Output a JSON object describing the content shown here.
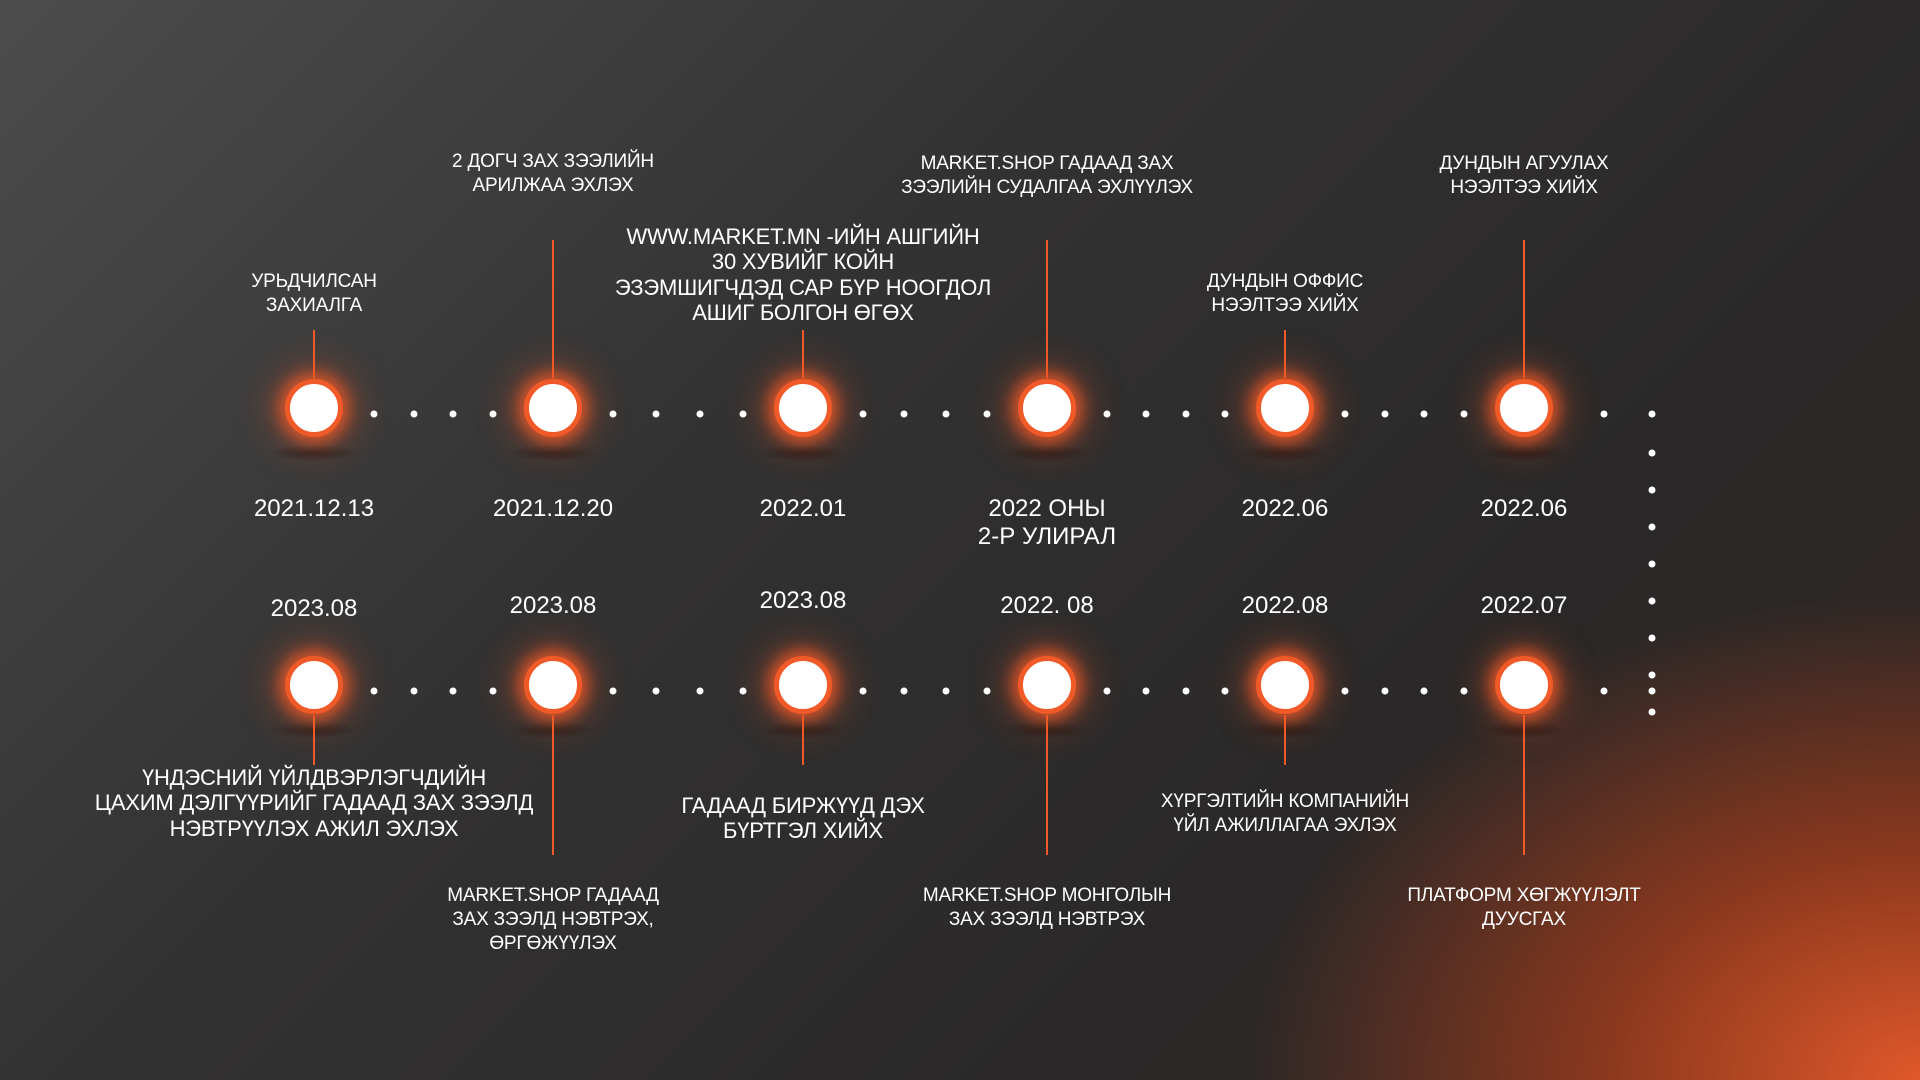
{
  "timeline": {
    "top": [
      {
        "date": "2021.12.13",
        "label": [
          "УРЬДЧИЛСАН",
          "ЗАХИАЛГА"
        ]
      },
      {
        "date": "2021.12.20",
        "label": [
          "2 ДОГЧ ЗАХ ЗЭЭЛИЙН",
          "АРИЛЖАА ЭХЛЭХ"
        ]
      },
      {
        "date": "2022.01",
        "label": [
          "WWW.MARKET.MN -ИЙН АШГИЙН",
          "30 ХУВИЙГ КОЙН",
          "ЭЗЭМШИГЧДЭД САР БҮР НООГДОЛ",
          "АШИГ БОЛГОН ӨГӨХ"
        ]
      },
      {
        "date": "2022 ОНЫ\n2-Р УЛИРАЛ",
        "label": [
          "MARKET.SHOP ГАДААД ЗАХ",
          "ЗЭЭЛИЙН СУДАЛГАА ЭХЛҮҮЛЭХ"
        ]
      },
      {
        "date": "2022.06",
        "label": [
          "ДУНДЫН ОФФИС",
          "НЭЭЛТЭЭ ХИЙХ"
        ]
      },
      {
        "date": "2022.06",
        "label": [
          "ДУНДЫН АГУУЛАХ",
          "НЭЭЛТЭЭ ХИЙХ"
        ]
      }
    ],
    "bottom": [
      {
        "date": "2023.08",
        "label": [
          "ҮНДЭСНИЙ ҮЙЛДВЭРЛЭГЧДИЙН",
          "ЦАХИМ ДЭЛГҮҮРИЙГ ГАДААД ЗАХ ЗЭЭЛД",
          "НЭВТРҮҮЛЭХ АЖИЛ ЭХЛЭХ"
        ]
      },
      {
        "date": "2023.08",
        "label": [
          "MARKET.SHOP ГАДААД",
          "ЗАХ ЗЭЭЛД НЭВТРЭХ,",
          "ӨРГӨЖҮҮЛЭХ"
        ]
      },
      {
        "date": "2023.08",
        "label": [
          "ГАДААД БИРЖҮҮД ДЭХ",
          "БҮРТГЭЛ ХИЙХ"
        ]
      },
      {
        "date": "2022. 08",
        "label": [
          "MARKET.SHOP МОНГОЛЫН",
          "ЗАХ ЗЭЭЛД НЭВТРЭХ"
        ]
      },
      {
        "date": "2022.08",
        "label": [
          "ХҮРГЭЛТИЙН КОМПАНИЙН",
          "ҮЙЛ АЖИЛЛАГАА ЭХЛЭХ"
        ]
      },
      {
        "date": "2022.07",
        "label": [
          "ПЛАТФОРМ ХӨГЖҮҮЛЭЛТ",
          "ДУУСГАХ"
        ]
      }
    ]
  },
  "colors": {
    "accent": "#f05a28",
    "node_fill": "#ffffff",
    "text": "#ffffff"
  }
}
